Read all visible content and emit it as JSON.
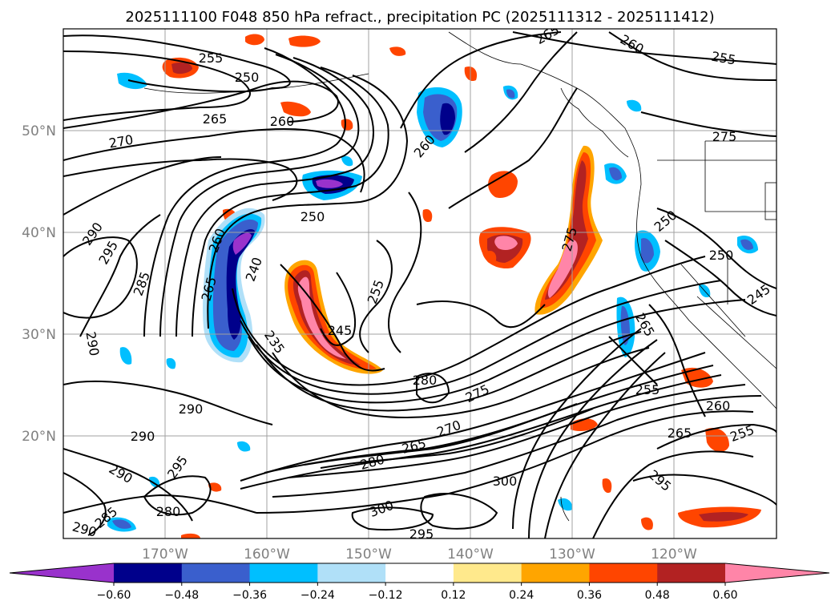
{
  "chart_data": {
    "type": "contour_map",
    "title": "2025111100 F048 850 hPa refract., precipitation PC (2025111312 - 2025111412)",
    "x_ticks": [
      "170°W",
      "160°W",
      "150°W",
      "140°W",
      "130°W",
      "120°W"
    ],
    "y_ticks": [
      "50°N",
      "40°N",
      "30°N",
      "20°N"
    ],
    "xlim_deg_east": [
      -180,
      -110
    ],
    "ylim_deg_north": [
      10,
      60
    ],
    "colorbar": {
      "levels": [
        "-0.60",
        "-0.48",
        "-0.36",
        "-0.24",
        "-0.12",
        "0.12",
        "0.24",
        "0.36",
        "0.48",
        "0.60"
      ],
      "colors": [
        "#9932cc",
        "#00008b",
        "#3a5fcd",
        "#00bfff",
        "#b0e0f8",
        "#ffffff",
        "#ffe98c",
        "#ffa500",
        "#ff4500",
        "#b22222",
        "#ff85a8"
      ]
    },
    "contour_labels": [
      "255",
      "250",
      "265",
      "260",
      "270",
      "290",
      "295",
      "260",
      "285",
      "265",
      "240",
      "250",
      "235",
      "245",
      "255",
      "260",
      "275",
      "280",
      "290",
      "290",
      "290",
      "295",
      "290",
      "285",
      "280",
      "300",
      "280",
      "275",
      "270",
      "265",
      "250",
      "255",
      "260",
      "250",
      "245",
      "275",
      "265",
      "255",
      "295",
      "300",
      "295",
      "290",
      "265",
      "260",
      "255",
      "265"
    ]
  }
}
